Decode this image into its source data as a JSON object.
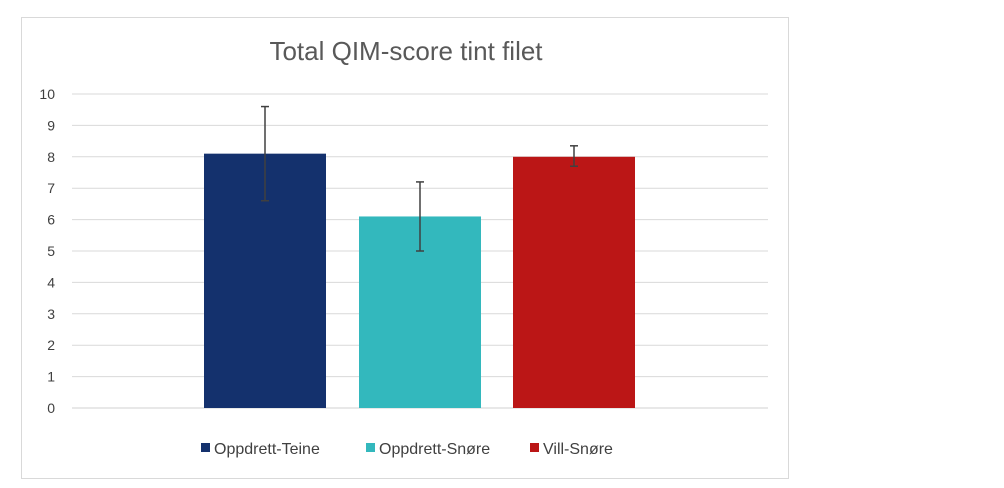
{
  "chart_data": {
    "type": "bar",
    "title": "Total QIM-score tint filet",
    "xlabel": "",
    "ylabel": "",
    "ylim": [
      0,
      10
    ],
    "yticks": [
      0,
      1,
      2,
      3,
      4,
      5,
      6,
      7,
      8,
      9,
      10
    ],
    "grid": true,
    "legend_position": "bottom",
    "series": [
      {
        "name": "Oppdrett-Teine",
        "value": 8.1,
        "error_low": 6.6,
        "error_high": 9.6,
        "color": "#14316d"
      },
      {
        "name": "Oppdrett-Snøre",
        "value": 6.1,
        "error_low": 5.0,
        "error_high": 7.2,
        "color": "#33b8bd"
      },
      {
        "name": "Vill-Snøre",
        "value": 8.0,
        "error_low": 7.7,
        "error_high": 8.35,
        "color": "#bb1616"
      }
    ]
  }
}
